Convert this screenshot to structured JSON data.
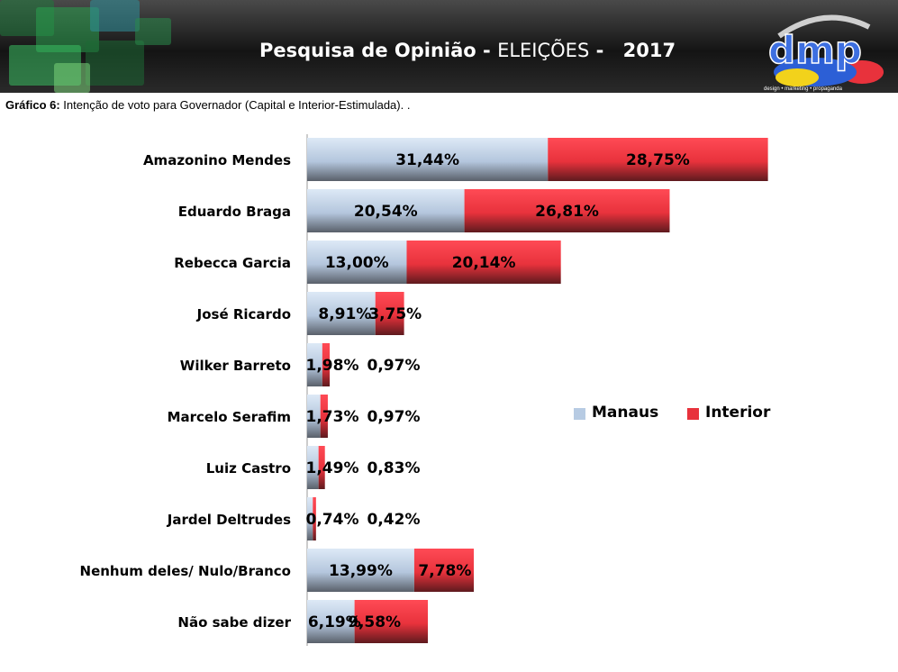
{
  "header": {
    "title_bold": "Pesquisa de Opinião",
    "title_sep1": " - ",
    "title_rest": "ELEIÇÕES",
    "title_sep2": " - ",
    "year": "2017",
    "logo_text": "dmp",
    "logo_tagline": "design • marketing • propaganda"
  },
  "caption": {
    "label": "Gráfico 6:",
    "text": " Intenção de voto para Governador (Capital e Interior-Estimulada). ."
  },
  "colors": {
    "manaus": "#b7cbe3",
    "interior": "#e8323c"
  },
  "chart_data": {
    "type": "bar",
    "orientation": "horizontal",
    "stacked": true,
    "categories": [
      "Amazonino Mendes",
      "Eduardo Braga",
      "Rebecca Garcia",
      "José Ricardo",
      "Wilker Barreto",
      "Marcelo Serafim",
      "Luiz Castro",
      "Jardel Deltrudes",
      "Nenhum deles/ Nulo/Branco",
      "Não sabe dizer"
    ],
    "series": [
      {
        "name": "Manaus",
        "values": [
          31.44,
          20.54,
          13.0,
          8.91,
          1.98,
          1.73,
          1.49,
          0.74,
          13.99,
          6.19
        ],
        "labels": [
          "31,44%",
          "20,54%",
          "13,00%",
          "8,91%",
          "1,98%",
          "1,73%",
          "1,49%",
          "0,74%",
          "13,99%",
          "6,19%"
        ]
      },
      {
        "name": "Interior",
        "values": [
          28.75,
          26.81,
          20.14,
          3.75,
          0.97,
          0.97,
          0.83,
          0.42,
          7.78,
          9.58
        ],
        "labels": [
          "28,75%",
          "26,81%",
          "20,14%",
          "3,75%",
          "0,97%",
          "0,97%",
          "0,83%",
          "0,42%",
          "7,78%",
          "9,58%"
        ]
      }
    ],
    "legend": {
      "position": "right",
      "items": [
        "Manaus",
        "Interior"
      ]
    },
    "grid": false
  }
}
